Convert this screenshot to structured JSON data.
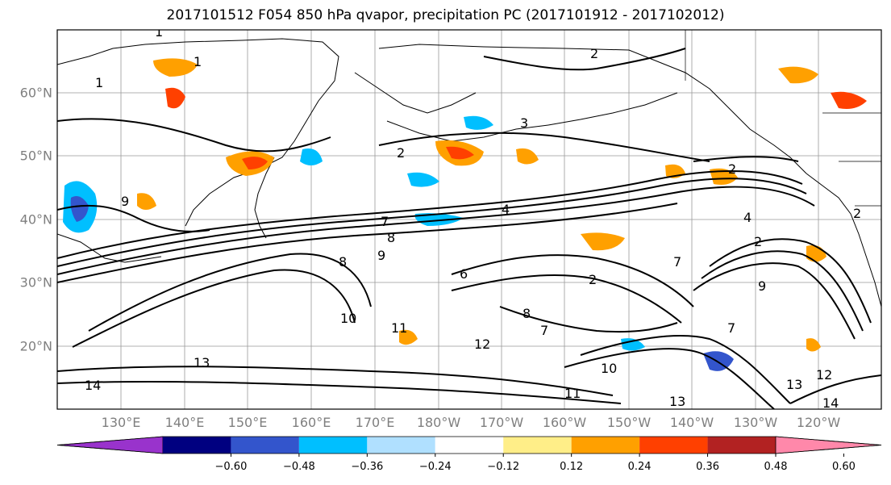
{
  "title": "2017101512 F054 850 hPa qvapor, precipitation PC (2017101912 - 2017102012)",
  "map": {
    "lon_ticks": [
      "130°E",
      "140°E",
      "150°E",
      "160°E",
      "170°E",
      "180°W",
      "170°W",
      "160°W",
      "150°W",
      "140°W",
      "130°W",
      "120°W"
    ],
    "lat_ticks": [
      "60°N",
      "50°N",
      "40°N",
      "30°N",
      "20°N"
    ],
    "lon_range": [
      "120°E",
      "110°W"
    ],
    "lat_range": [
      "10°N",
      "70°N"
    ],
    "gridlines": true,
    "contour_labels": [
      "1",
      "1",
      "1",
      "2",
      "2",
      "3",
      "2",
      "4",
      "7",
      "8",
      "9",
      "8",
      "6",
      "7",
      "9",
      "10",
      "11",
      "12",
      "13",
      "14",
      "10",
      "11",
      "7",
      "8",
      "7",
      "2",
      "2",
      "4",
      "9",
      "13",
      "12",
      "14",
      "13",
      "2"
    ]
  },
  "colorbar": {
    "colors": [
      "#9933cc",
      "#000080",
      "#3355cc",
      "#00bfff",
      "#b0e0ff",
      "#ffffff",
      "#ffee88",
      "#ffa000",
      "#ff4000",
      "#b22222",
      "#ff88aa"
    ],
    "labels": [
      "−0.60",
      "−0.48",
      "−0.36",
      "−0.24",
      "−0.12",
      "0.12",
      "0.24",
      "0.36",
      "0.48",
      "0.60"
    ]
  },
  "palette": {
    "frame": "#000000",
    "grid": "#999999",
    "tick": "#7f7f7f"
  }
}
